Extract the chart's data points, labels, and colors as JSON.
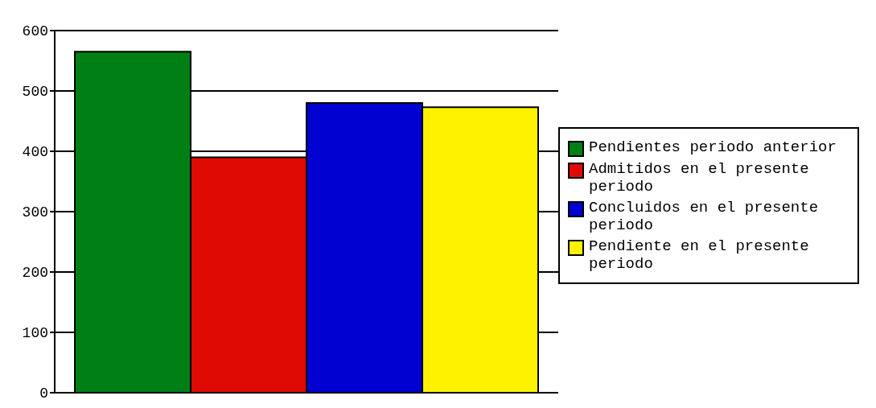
{
  "chart_data": {
    "type": "bar",
    "categories": [
      null
    ],
    "series": [
      {
        "name": "Pendientes periodo anterior",
        "color": "#007f14",
        "values": [
          565
        ]
      },
      {
        "name": "Admitidos en el presente periodo",
        "color": "#e00a05",
        "values": [
          390
        ]
      },
      {
        "name": "Concluidos en el presente periodo",
        "color": "#0000d0",
        "values": [
          480
        ]
      },
      {
        "name": "Pendiente en el presente periodo",
        "color": "#fff200",
        "values": [
          473
        ]
      }
    ],
    "ylim": [
      0,
      600
    ],
    "yticks": [
      0,
      100,
      200,
      300,
      400,
      500,
      600
    ],
    "grid": "y",
    "legend": "right"
  }
}
